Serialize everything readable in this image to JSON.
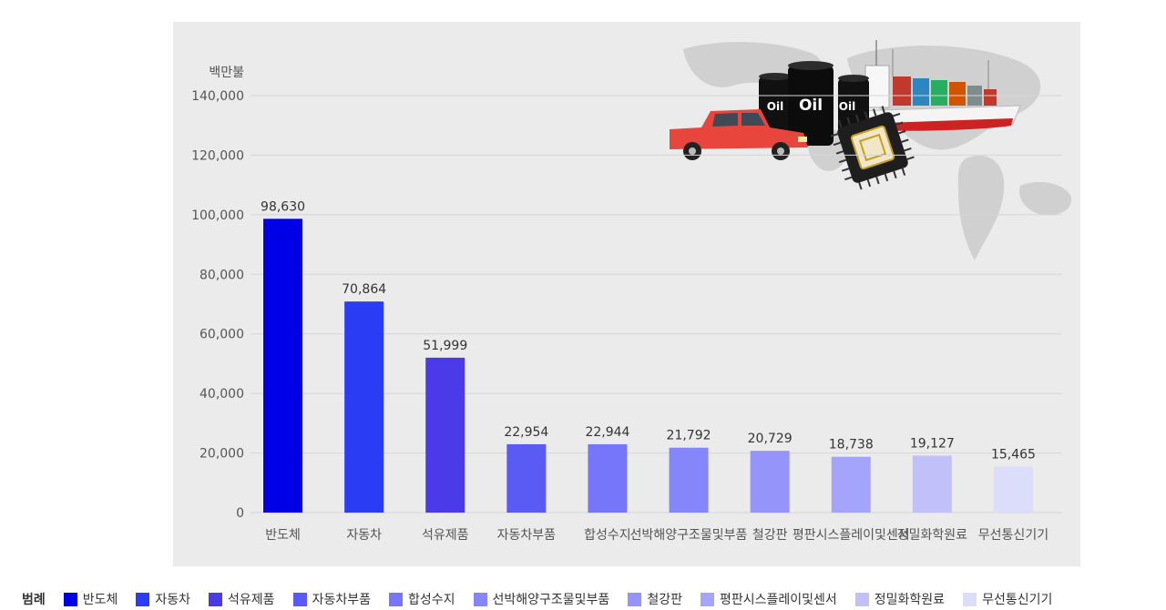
{
  "chart_data": {
    "type": "bar",
    "unit_label": "백만불",
    "categories": [
      "반도체",
      "자동차",
      "석유제품",
      "자동차부품",
      "합성수지",
      "선박해양구조물및부품",
      "철강판",
      "평판시스플레이및센서",
      "정밀화학원료",
      "무선통신기기"
    ],
    "values": [
      98630,
      70864,
      51999,
      22954,
      22944,
      21792,
      20729,
      18738,
      19127,
      15465
    ],
    "value_labels": [
      "98,630",
      "70,864",
      "51,999",
      "22,954",
      "22,944",
      "21,792",
      "20,729",
      "18,738",
      "19,127",
      "15,465"
    ],
    "colors": [
      "#0000e6",
      "#2b3cf5",
      "#4a3ae8",
      "#5a5af5",
      "#7676fa",
      "#8686fb",
      "#9494fb",
      "#a4a4fb",
      "#c1c0f8",
      "#dcdcfb"
    ],
    "ylim": [
      0,
      140000
    ],
    "yticks": [
      0,
      20000,
      40000,
      60000,
      80000,
      100000,
      120000,
      140000
    ],
    "ytick_labels": [
      "0",
      "20,000",
      "40,000",
      "60,000",
      "80,000",
      "100,000",
      "120,000",
      "140,000"
    ],
    "grid": true,
    "legend_position": "bottom"
  },
  "legend": {
    "title": "범례",
    "items": [
      "반도체",
      "자동차",
      "석유제품",
      "자동차부품",
      "합성수지",
      "선박해양구조물및부품",
      "철강판",
      "평판시스플레이및센서",
      "정밀화학원료",
      "무선통신기기"
    ]
  },
  "illustration": {
    "barrel_labels": [
      "Oil",
      "Oil",
      "Oil"
    ],
    "icons": [
      "world-map-icon",
      "pickup-truck-icon",
      "oil-barrel-icon",
      "cargo-ship-icon",
      "microchip-icon"
    ]
  }
}
